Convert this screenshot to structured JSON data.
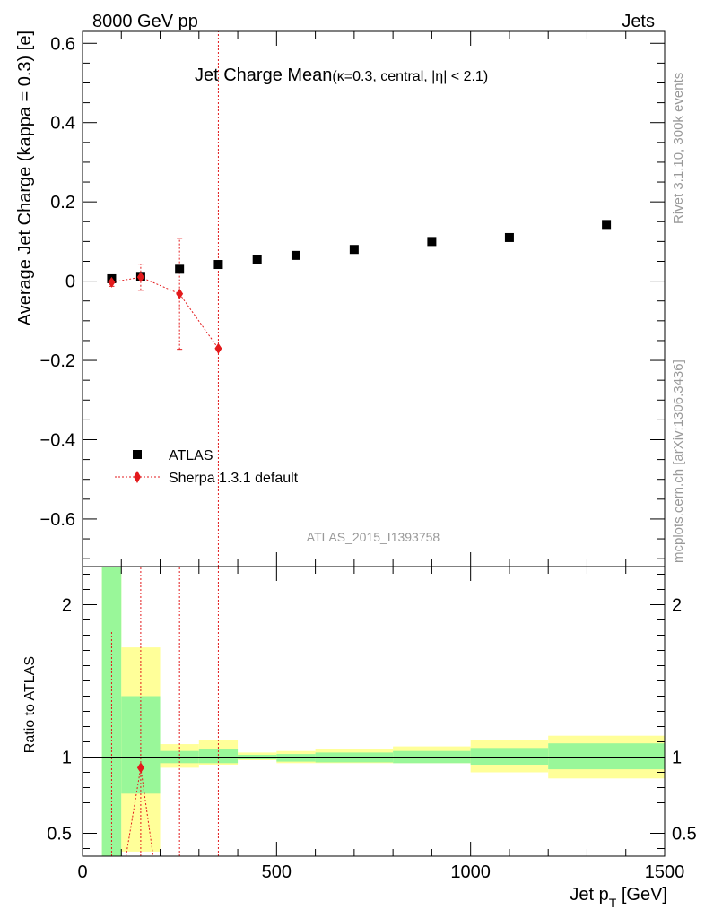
{
  "header": {
    "left": "8000 GeV pp",
    "right": "Jets"
  },
  "title": {
    "main": "Jet Charge Mean",
    "qual": "(κ=0.3, central, |η| < 2.1)"
  },
  "side": {
    "rivet": "Rivet 3.1.10,  300k events",
    "mcplots": "mcplots.cern.ch [arXiv:1306.3436]"
  },
  "watermark": "ATLAS_2015_I1393758",
  "axes": {
    "ylabel_main": "Average Jet Charge (kappa = 0.3) [e]",
    "ylabel_ratio": "Ratio to ATLAS",
    "xlabel": "Jet p",
    "xlabel_sub": "T",
    "xlabel_unit": " [GeV]"
  },
  "legend": {
    "data_label": "ATLAS",
    "mc_label": "Sherpa 1.3.1 default"
  },
  "colors": {
    "data": "#000000",
    "mc": "#e31a1c",
    "band_inner": "#99f799",
    "band_outer": "#ffff99"
  },
  "chart_data": {
    "type": "scatter",
    "xlim": [
      0,
      1500
    ],
    "ylim_main": [
      -0.72,
      0.63
    ],
    "ylim_ratio": [
      0.35,
      2.25
    ],
    "x_ticks": [
      0,
      500,
      1000,
      1500
    ],
    "y_ticks_main": [
      -0.6,
      -0.4,
      -0.2,
      0,
      0.2,
      0.4,
      0.6
    ],
    "y_tick_labels_main": [
      "−0.6",
      "−0.4",
      "−0.2",
      "0",
      "0.2",
      "0.4",
      "0.6"
    ],
    "y_ticks_ratio": [
      0.5,
      1,
      2
    ],
    "y_tick_labels_ratio": [
      "0.5",
      "1",
      "2"
    ],
    "data_series": {
      "name": "ATLAS",
      "bins": [
        [
          50,
          100
        ],
        [
          100,
          200
        ],
        [
          200,
          300
        ],
        [
          300,
          400
        ],
        [
          400,
          500
        ],
        [
          500,
          600
        ],
        [
          600,
          800
        ],
        [
          800,
          1000
        ],
        [
          1000,
          1200
        ],
        [
          1200,
          1500
        ]
      ],
      "x": [
        75,
        150,
        250,
        350,
        450,
        550,
        700,
        900,
        1100,
        1350
      ],
      "y": [
        0.006,
        0.012,
        0.03,
        0.042,
        0.055,
        0.065,
        0.08,
        0.1,
        0.11,
        0.143
      ]
    },
    "mc_series": {
      "name": "Sherpa 1.3.1 default",
      "x": [
        75,
        150,
        250,
        350
      ],
      "y": [
        -0.003,
        0.01,
        -0.032,
        -0.17
      ],
      "yerr": [
        0.01,
        0.033,
        0.14,
        0.8
      ]
    },
    "ratio_bands": {
      "bins": [
        [
          50,
          100
        ],
        [
          100,
          200
        ],
        [
          200,
          300
        ],
        [
          300,
          400
        ],
        [
          400,
          500
        ],
        [
          500,
          600
        ],
        [
          600,
          800
        ],
        [
          800,
          1000
        ],
        [
          1000,
          1200
        ],
        [
          1200,
          1500
        ]
      ],
      "inner": [
        [
          0.3,
          2.4
        ],
        [
          0.76,
          1.4
        ],
        [
          0.96,
          1.04
        ],
        [
          0.96,
          1.05
        ],
        [
          0.985,
          1.015
        ],
        [
          0.97,
          1.02
        ],
        [
          0.965,
          1.03
        ],
        [
          0.96,
          1.04
        ],
        [
          0.95,
          1.06
        ],
        [
          0.92,
          1.09
        ]
      ],
      "outer": [
        [
          0.3,
          2.4
        ],
        [
          0.38,
          1.72
        ],
        [
          0.93,
          1.085
        ],
        [
          0.95,
          1.11
        ],
        [
          0.98,
          1.03
        ],
        [
          0.96,
          1.04
        ],
        [
          0.96,
          1.05
        ],
        [
          0.96,
          1.07
        ],
        [
          0.9,
          1.11
        ],
        [
          0.86,
          1.14
        ]
      ]
    },
    "ratio_mc": {
      "x": [
        75,
        150,
        250,
        350
      ],
      "y": [
        null,
        0.93,
        null,
        null
      ],
      "line": [
        [
          112,
          0.35
        ],
        [
          150,
          0.93
        ],
        [
          182,
          0.35
        ]
      ],
      "err_bars": [
        [
          75,
          0.35,
          1.83
        ],
        [
          150,
          0.35,
          2.25
        ],
        [
          250,
          0.35,
          2.25
        ],
        [
          350,
          0.35,
          2.25
        ]
      ]
    }
  }
}
